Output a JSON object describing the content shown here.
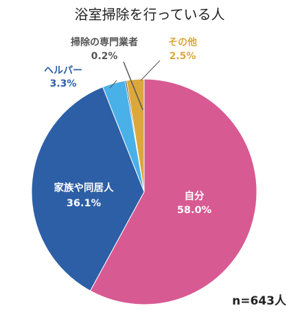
{
  "chart_data": {
    "type": "pie",
    "title": "浴室掃除を行っている人",
    "note": "n=643人",
    "slices": [
      {
        "label": "自分",
        "value": 58.0,
        "value_label": "58.0%",
        "color": "#d85a92"
      },
      {
        "label": "家族や同居人",
        "value": 36.1,
        "value_label": "36.1%",
        "color": "#2d5fa6"
      },
      {
        "label": "ヘルパー",
        "value": 3.3,
        "value_label": "3.3%",
        "color": "#4ab0e8"
      },
      {
        "label": "掃除の専門業者",
        "value": 0.2,
        "value_label": "0.2%",
        "color": "#222222"
      },
      {
        "label": "その他",
        "value": 2.5,
        "value_label": "2.5%",
        "color": "#dca83c"
      }
    ]
  }
}
